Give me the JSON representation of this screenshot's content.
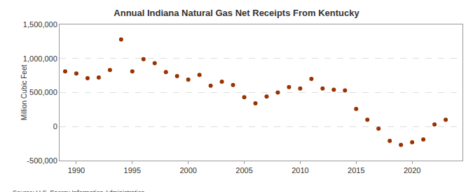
{
  "chart_data": {
    "type": "scatter",
    "title": "Annual Indiana Natural Gas Net Receipts From Kentucky",
    "y_label": "Million Cubic Feet",
    "annotations": [
      "Source: U.S. Energy Information Administration"
    ],
    "x": [
      1989,
      1990,
      1991,
      1992,
      1993,
      1994,
      1995,
      1996,
      1997,
      1998,
      1999,
      2000,
      2001,
      2002,
      2003,
      2004,
      2005,
      2006,
      2007,
      2008,
      2009,
      2010,
      2011,
      2012,
      2013,
      2014,
      2015,
      2016,
      2017,
      2018,
      2019,
      2020,
      2021,
      2022,
      2023
    ],
    "values": [
      810000,
      780000,
      710000,
      720000,
      830000,
      1280000,
      810000,
      990000,
      930000,
      800000,
      740000,
      690000,
      760000,
      600000,
      660000,
      610000,
      430000,
      340000,
      440000,
      500000,
      580000,
      560000,
      700000,
      560000,
      540000,
      530000,
      260000,
      100000,
      -30000,
      -210000,
      -270000,
      -230000,
      -190000,
      30000,
      100000
    ],
    "color": "#993300",
    "marker": "circle",
    "xlim": [
      1988.5,
      2024.5
    ],
    "xticks": [
      1990,
      1995,
      2000,
      2005,
      2010,
      2015,
      2020
    ],
    "ylim": [
      -500000,
      1500000
    ],
    "yticks": [
      {
        "value": -500000,
        "label": "-500,000"
      },
      0,
      {
        "value": 500000,
        "label": "500,000"
      },
      {
        "value": 1000000,
        "label": "1,000,000"
      },
      {
        "value": 1500000,
        "label": "1,500,000"
      }
    ],
    "grid": true
  }
}
